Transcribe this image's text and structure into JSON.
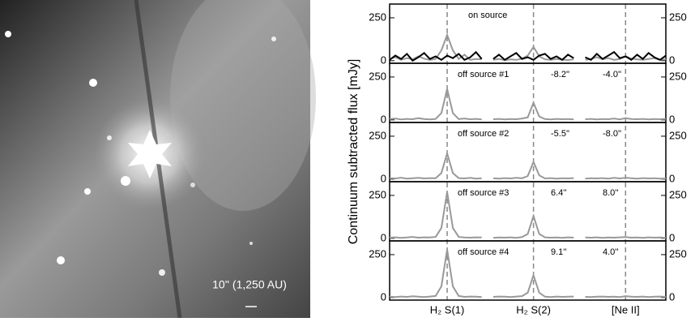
{
  "image": {
    "scale_label": "10'' (1,250 AU)"
  },
  "chart_data": {
    "type": "line",
    "ylabel": "Continuum subtracted flux [mJy]",
    "categories": [
      null,
      null,
      null,
      null,
      null,
      null,
      null,
      null,
      null,
      null,
      "H₂ S(1)",
      null,
      null,
      null,
      null,
      null,
      null,
      null,
      null,
      null,
      null,
      null,
      null,
      null,
      null,
      "H₂ S(2)",
      null,
      null,
      null,
      null,
      null,
      null,
      null,
      null,
      null,
      null,
      null,
      null,
      null,
      null,
      null,
      "[Ne II]",
      null,
      null,
      null,
      null,
      null,
      null,
      null
    ],
    "panels": [
      {
        "label": "on source",
        "ylim": [
          -15,
          330
        ],
        "yticks": [
          0,
          250
        ],
        "series": [
          {
            "color": "#999999",
            "values": [
              10,
              20,
              5,
              15,
              8,
              25,
              12,
              5,
              10,
              60,
              150,
              60,
              10,
              35,
              5,
              10,
              8,
              null,
              5,
              10,
              3,
              8,
              5,
              12,
              30,
              80,
              25,
              8,
              5,
              10,
              6,
              4,
              8,
              null,
              5,
              10,
              20,
              8,
              15,
              5,
              10,
              25,
              12,
              8,
              5,
              10,
              15,
              5,
              8
            ]
          },
          {
            "color": "#000000",
            "values": [
              5,
              30,
              10,
              40,
              0,
              20,
              45,
              10,
              25,
              5,
              30,
              15,
              40,
              5,
              20,
              50,
              10,
              null,
              10,
              35,
              5,
              25,
              45,
              10,
              20,
              5,
              30,
              40,
              10,
              25,
              5,
              35,
              15,
              null,
              20,
              5,
              40,
              10,
              30,
              50,
              15,
              25,
              5,
              35,
              10,
              45,
              20,
              5,
              30
            ]
          }
        ]
      },
      {
        "label": "off source #1",
        "offsets": [
          "-8.2''",
          "-4.0''"
        ],
        "ylim": [
          -15,
          330
        ],
        "yticks": [
          0,
          250
        ],
        "series": [
          {
            "color": "#999999",
            "values": [
              5,
              8,
              3,
              6,
              4,
              10,
              5,
              3,
              6,
              40,
              180,
              40,
              5,
              8,
              4,
              6,
              3,
              null,
              4,
              6,
              3,
              5,
              4,
              8,
              15,
              100,
              20,
              5,
              3,
              6,
              4,
              5,
              3,
              null,
              4,
              6,
              3,
              5,
              4,
              8,
              3,
              10,
              5,
              4,
              6,
              3,
              5,
              4,
              6
            ]
          }
        ]
      },
      {
        "label": "off source #2",
        "offsets": [
          "-5.5''",
          "-8.0''"
        ],
        "ylim": [
          -15,
          330
        ],
        "yticks": [
          0,
          250
        ],
        "series": [
          {
            "color": "#999999",
            "values": [
              6,
              4,
              8,
              3,
              5,
              7,
              4,
              6,
              5,
              35,
              150,
              35,
              6,
              4,
              7,
              3,
              5,
              null,
              5,
              3,
              6,
              4,
              7,
              5,
              18,
              100,
              22,
              4,
              6,
              3,
              5,
              4,
              6,
              null,
              3,
              5,
              4,
              6,
              3,
              7,
              4,
              8,
              5,
              3,
              6,
              4,
              5,
              3,
              4
            ]
          }
        ]
      },
      {
        "label": "off source #3",
        "offsets": [
          "6.4''",
          "8.0''"
        ],
        "ylim": [
          -15,
          330
        ],
        "yticks": [
          0,
          250
        ],
        "series": [
          {
            "color": "#999999",
            "values": [
              4,
              6,
              3,
              5,
              8,
              4,
              6,
              5,
              8,
              60,
              270,
              60,
              8,
              5,
              4,
              6,
              5,
              null,
              3,
              5,
              4,
              6,
              3,
              7,
              25,
              130,
              25,
              6,
              4,
              5,
              3,
              6,
              4,
              null,
              5,
              4,
              6,
              3,
              5,
              4,
              6,
              7,
              4,
              5,
              3,
              6,
              4,
              5,
              3
            ]
          }
        ]
      },
      {
        "label": "off source #4",
        "offsets": [
          "9.1''",
          "4.0''"
        ],
        "ylim": [
          -15,
          330
        ],
        "yticks": [
          0,
          250
        ],
        "series": [
          {
            "color": "#999999",
            "values": [
              5,
              3,
              6,
              4,
              7,
              5,
              3,
              6,
              9,
              65,
              280,
              65,
              9,
              4,
              6,
              5,
              3,
              null,
              4,
              6,
              5,
              3,
              6,
              8,
              28,
              130,
              28,
              5,
              3,
              6,
              4,
              5,
              6,
              null,
              4,
              3,
              5,
              6,
              4,
              5,
              3,
              8,
              5,
              4,
              6,
              3,
              5,
              6,
              4
            ]
          }
        ]
      }
    ]
  }
}
